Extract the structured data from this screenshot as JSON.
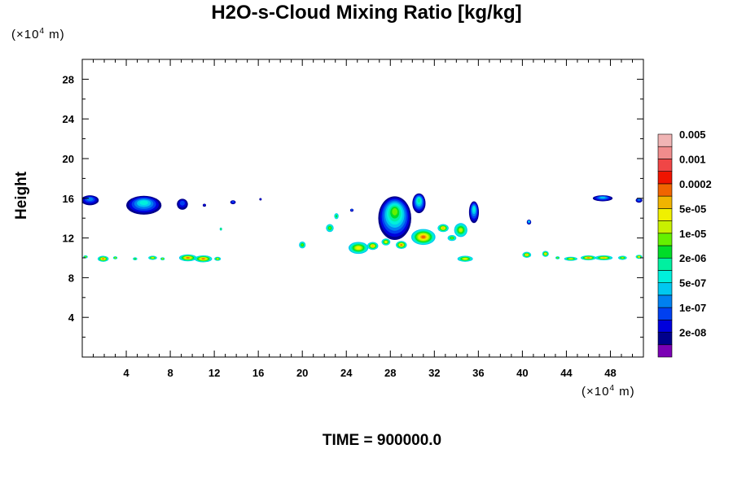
{
  "chart_data": {
    "type": "heatmap",
    "title": "H2O-s-Cloud Mixing Ratio [kg/kg]",
    "xlabel": "",
    "ylabel": "Height",
    "x_unit_prefix": "(×10",
    "x_unit_exp": "4",
    "x_unit_suffix": " m)",
    "y_unit_prefix": "(×10",
    "y_unit_exp": "4",
    "y_unit_suffix": " m)",
    "xlim": [
      0,
      51
    ],
    "ylim": [
      0,
      30
    ],
    "x_ticks": [
      4,
      8,
      12,
      16,
      20,
      24,
      28,
      32,
      36,
      40,
      44,
      48
    ],
    "y_ticks": [
      4,
      8,
      12,
      16,
      20,
      24,
      28
    ],
    "footer": "TIME = 900000.0",
    "colorbar": {
      "colors": [
        "#7a00b4",
        "#00008c",
        "#0000dc",
        "#0040f0",
        "#0080f0",
        "#00c8f0",
        "#00f0dc",
        "#00f0a0",
        "#00dc28",
        "#64f000",
        "#c8f000",
        "#f0f000",
        "#f0b400",
        "#f06400",
        "#f01400",
        "#f04646",
        "#f08c8c",
        "#f0b4b4"
      ],
      "labels": [
        "2e-08",
        "1e-07",
        "5e-07",
        "2e-06",
        "1e-05",
        "5e-05",
        "0.0002",
        "0.001",
        "0.005"
      ]
    },
    "upper_clouds": [
      {
        "x": 0.7,
        "y": 15.8,
        "rx": 0.8,
        "ry": 0.5,
        "level": 4
      },
      {
        "x": 5.6,
        "y": 15.3,
        "rx": 1.6,
        "ry": 0.95,
        "level": 6
      },
      {
        "x": 9.1,
        "y": 15.4,
        "rx": 0.5,
        "ry": 0.55,
        "level": 3
      },
      {
        "x": 11.1,
        "y": 15.3,
        "rx": 0.15,
        "ry": 0.15,
        "level": 2
      },
      {
        "x": 13.7,
        "y": 15.6,
        "rx": 0.25,
        "ry": 0.2,
        "level": 3
      },
      {
        "x": 16.2,
        "y": 15.9,
        "rx": 0.1,
        "ry": 0.1,
        "level": 2
      },
      {
        "x": 24.5,
        "y": 14.8,
        "rx": 0.15,
        "ry": 0.15,
        "level": 4
      },
      {
        "x": 28.4,
        "y": 14.0,
        "rx": 1.5,
        "ry": 2.2,
        "level": 9
      },
      {
        "x": 30.6,
        "y": 15.5,
        "rx": 0.6,
        "ry": 1.0,
        "level": 7
      },
      {
        "x": 35.6,
        "y": 14.6,
        "rx": 0.45,
        "ry": 1.1,
        "level": 6
      },
      {
        "x": 40.6,
        "y": 13.6,
        "rx": 0.2,
        "ry": 0.25,
        "level": 6
      },
      {
        "x": 47.3,
        "y": 16.0,
        "rx": 0.9,
        "ry": 0.3,
        "level": 5
      },
      {
        "x": 50.6,
        "y": 15.8,
        "rx": 0.3,
        "ry": 0.25,
        "level": 4
      }
    ],
    "lower_clouds": [
      {
        "x": 22.5,
        "y": 13.0,
        "rx": 0.35,
        "ry": 0.4,
        "level": 9
      },
      {
        "x": 23.1,
        "y": 14.2,
        "rx": 0.2,
        "ry": 0.3,
        "level": 8
      },
      {
        "x": 20.0,
        "y": 11.3,
        "rx": 0.3,
        "ry": 0.35,
        "level": 9
      },
      {
        "x": 25.1,
        "y": 11.0,
        "rx": 0.9,
        "ry": 0.6,
        "level": 11
      },
      {
        "x": 26.4,
        "y": 11.2,
        "rx": 0.5,
        "ry": 0.4,
        "level": 12
      },
      {
        "x": 27.6,
        "y": 11.6,
        "rx": 0.4,
        "ry": 0.35,
        "level": 11
      },
      {
        "x": 29.0,
        "y": 11.3,
        "rx": 0.5,
        "ry": 0.4,
        "level": 13
      },
      {
        "x": 31.0,
        "y": 12.1,
        "rx": 1.1,
        "ry": 0.8,
        "level": 13
      },
      {
        "x": 32.8,
        "y": 13.0,
        "rx": 0.5,
        "ry": 0.4,
        "level": 12
      },
      {
        "x": 34.4,
        "y": 12.8,
        "rx": 0.6,
        "ry": 0.7,
        "level": 10
      },
      {
        "x": 33.6,
        "y": 12.0,
        "rx": 0.4,
        "ry": 0.3,
        "level": 9
      },
      {
        "x": 34.8,
        "y": 9.9,
        "rx": 0.7,
        "ry": 0.3,
        "level": 11
      },
      {
        "x": 1.9,
        "y": 9.9,
        "rx": 0.5,
        "ry": 0.3,
        "level": 13
      },
      {
        "x": 3.0,
        "y": 10.0,
        "rx": 0.2,
        "ry": 0.15,
        "level": 11
      },
      {
        "x": 4.8,
        "y": 9.9,
        "rx": 0.2,
        "ry": 0.15,
        "level": 9
      },
      {
        "x": 6.4,
        "y": 10.0,
        "rx": 0.4,
        "ry": 0.2,
        "level": 11
      },
      {
        "x": 7.3,
        "y": 9.9,
        "rx": 0.2,
        "ry": 0.15,
        "level": 11
      },
      {
        "x": 9.6,
        "y": 10.0,
        "rx": 0.8,
        "ry": 0.35,
        "level": 13
      },
      {
        "x": 11.0,
        "y": 9.9,
        "rx": 0.8,
        "ry": 0.35,
        "level": 13
      },
      {
        "x": 12.3,
        "y": 9.9,
        "rx": 0.3,
        "ry": 0.2,
        "level": 11
      },
      {
        "x": 12.6,
        "y": 12.9,
        "rx": 0.1,
        "ry": 0.15,
        "level": 9
      },
      {
        "x": 0.3,
        "y": 10.1,
        "rx": 0.2,
        "ry": 0.15,
        "level": 10
      },
      {
        "x": 40.4,
        "y": 10.3,
        "rx": 0.4,
        "ry": 0.3,
        "level": 12
      },
      {
        "x": 42.1,
        "y": 10.4,
        "rx": 0.3,
        "ry": 0.3,
        "level": 12
      },
      {
        "x": 43.2,
        "y": 10.0,
        "rx": 0.2,
        "ry": 0.15,
        "level": 10
      },
      {
        "x": 44.4,
        "y": 9.9,
        "rx": 0.6,
        "ry": 0.2,
        "level": 11
      },
      {
        "x": 46.0,
        "y": 10.0,
        "rx": 0.7,
        "ry": 0.25,
        "level": 13
      },
      {
        "x": 47.4,
        "y": 10.0,
        "rx": 0.8,
        "ry": 0.25,
        "level": 12
      },
      {
        "x": 49.1,
        "y": 10.0,
        "rx": 0.4,
        "ry": 0.2,
        "level": 10
      },
      {
        "x": 50.6,
        "y": 10.1,
        "rx": 0.3,
        "ry": 0.2,
        "level": 12
      }
    ]
  }
}
